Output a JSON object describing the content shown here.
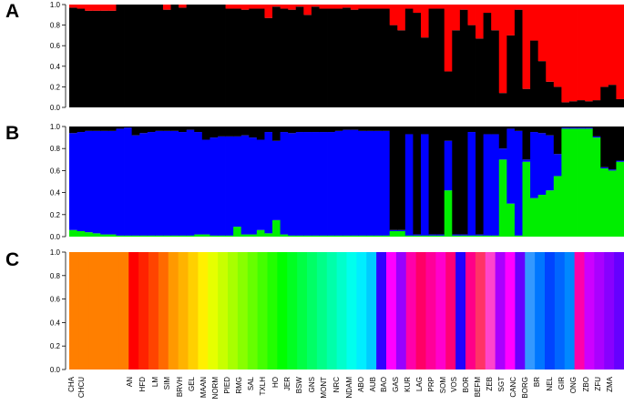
{
  "chart_data": [
    {
      "type": "bar",
      "stacked": true,
      "panel": "A",
      "ylim": [
        0,
        1
      ],
      "yticks": [
        "0.0",
        "0.2",
        "0.4",
        "0.6",
        "0.8",
        "1.0"
      ],
      "components": [
        {
          "color": "#000000",
          "values": [
            0.97,
            0.96,
            0.94,
            0.94,
            0.94,
            0.94,
            1,
            1,
            1,
            1,
            1,
            1,
            0.95,
            1,
            0.97,
            1,
            1,
            1,
            1,
            1,
            0.96,
            0.96,
            0.95,
            0.96,
            0.96,
            0.87,
            0.98,
            0.96,
            0.95,
            0.98,
            0.9,
            0.98,
            0.96,
            0.96,
            0.96,
            0.97,
            0.95,
            0.96,
            0.96,
            0.96,
            0.96,
            0.8,
            0.75,
            0.96,
            0.92,
            0.68,
            0.96,
            0.96,
            0.35,
            0.75,
            0.95,
            0.8,
            0.67,
            0.92,
            0.75,
            0.14,
            0.7,
            0.95,
            0.18,
            0.65,
            0.45,
            0.25,
            0.2,
            0.05,
            0.06,
            0.07,
            0.06,
            0.07,
            0.2,
            0.22,
            0.08
          ]
        },
        {
          "color": "#ff0000",
          "values": [
            0.03,
            0.04,
            0.06,
            0.06,
            0.06,
            0.06,
            0,
            0,
            0,
            0,
            0,
            0,
            0.05,
            0,
            0.03,
            0,
            0,
            0,
            0,
            0,
            0.04,
            0.04,
            0.05,
            0.04,
            0.04,
            0.13,
            0.02,
            0.04,
            0.05,
            0.02,
            0.1,
            0.02,
            0.04,
            0.04,
            0.04,
            0.03,
            0.05,
            0.04,
            0.04,
            0.04,
            0.04,
            0.2,
            0.25,
            0.04,
            0.08,
            0.32,
            0.04,
            0.04,
            0.65,
            0.25,
            0.05,
            0.2,
            0.33,
            0.08,
            0.25,
            0.86,
            0.3,
            0.05,
            0.82,
            0.35,
            0.55,
            0.75,
            0.8,
            0.95,
            0.94,
            0.93,
            0.94,
            0.93,
            0.8,
            0.78,
            0.92
          ]
        }
      ]
    },
    {
      "type": "bar",
      "stacked": true,
      "panel": "B",
      "ylim": [
        0,
        1
      ],
      "yticks": [
        "0.0",
        "0.2",
        "0.4",
        "0.6",
        "0.8",
        "1.0"
      ],
      "components": [
        {
          "color": "#00ee00",
          "values": [
            0.06,
            0.05,
            0.04,
            0.03,
            0.02,
            0.02,
            0.01,
            0.01,
            0.01,
            0.01,
            0.01,
            0.01,
            0.01,
            0.01,
            0.01,
            0.01,
            0.02,
            0.02,
            0.01,
            0.01,
            0.01,
            0.09,
            0.02,
            0.02,
            0.06,
            0.03,
            0.15,
            0.02,
            0.01,
            0.01,
            0.01,
            0.01,
            0.01,
            0.01,
            0.01,
            0.01,
            0.01,
            0.01,
            0.01,
            0.01,
            0.01,
            0.05,
            0.05,
            0.01,
            0.01,
            0.01,
            0.01,
            0.01,
            0.42,
            0.01,
            0.01,
            0.01,
            0.01,
            0.01,
            0.01,
            0.7,
            0.3,
            0.01,
            0.68,
            0.35,
            0.38,
            0.42,
            0.55,
            0.98,
            0.98,
            0.98,
            0.98,
            0.9,
            0.62,
            0.6,
            0.68
          ]
        },
        {
          "color": "#0000ff",
          "values": [
            0.88,
            0.9,
            0.92,
            0.93,
            0.94,
            0.94,
            0.97,
            0.98,
            0.91,
            0.93,
            0.94,
            0.95,
            0.95,
            0.95,
            0.94,
            0.96,
            0.93,
            0.86,
            0.89,
            0.9,
            0.9,
            0.82,
            0.9,
            0.88,
            0.82,
            0.92,
            0.72,
            0.93,
            0.93,
            0.94,
            0.94,
            0.94,
            0.94,
            0.94,
            0.95,
            0.96,
            0.96,
            0.95,
            0.95,
            0.95,
            0.95,
            0.01,
            0.01,
            0.92,
            0.01,
            0.92,
            0.01,
            0.01,
            0.45,
            0.01,
            0.01,
            0.94,
            0.01,
            0.92,
            0.92,
            0.1,
            0.68,
            0.95,
            0.02,
            0.6,
            0.56,
            0.5,
            0.2,
            0.01,
            0.01,
            0.01,
            0.01,
            0.01,
            0.01,
            0.01,
            0.01
          ]
        },
        {
          "color": "#000000",
          "values": [
            0.06,
            0.05,
            0.04,
            0.04,
            0.04,
            0.04,
            0.02,
            0.01,
            0.08,
            0.06,
            0.05,
            0.04,
            0.04,
            0.04,
            0.05,
            0.03,
            0.05,
            0.12,
            0.1,
            0.09,
            0.09,
            0.09,
            0.08,
            0.1,
            0.12,
            0.05,
            0.13,
            0.05,
            0.06,
            0.05,
            0.05,
            0.05,
            0.05,
            0.05,
            0.04,
            0.03,
            0.03,
            0.04,
            0.04,
            0.04,
            0.04,
            0.94,
            0.94,
            0.07,
            0.98,
            0.07,
            0.98,
            0.98,
            0.13,
            0.98,
            0.98,
            0.05,
            0.98,
            0.07,
            0.07,
            0.2,
            0.02,
            0.04,
            0.3,
            0.05,
            0.06,
            0.08,
            0.25,
            0.01,
            0.01,
            0.01,
            0.01,
            0.09,
            0.37,
            0.39,
            0.31
          ]
        }
      ]
    },
    {
      "type": "bar",
      "stacked": true,
      "panel": "C",
      "ylim": [
        0,
        1
      ],
      "yticks": [
        "0.0",
        "0.2",
        "0.4",
        "0.6",
        "0.8",
        "1.0"
      ],
      "colors": [
        "#ff7f00",
        "#ff7f00",
        "#ff7f00",
        "#ff7f00",
        "#ff7f00",
        "#ff7f00",
        "#ff0000",
        "#ff2200",
        "#ff4400",
        "#ff6a00",
        "#ff9900",
        "#ffb300",
        "#ffd000",
        "#fff000",
        "#e6ff00",
        "#c8ff00",
        "#a8ff00",
        "#88ff00",
        "#66ff00",
        "#44ff00",
        "#22ff00",
        "#00ff00",
        "#00ff22",
        "#00ff44",
        "#00ff66",
        "#00ff88",
        "#00ffaa",
        "#00ffcc",
        "#00ffee",
        "#00eeff",
        "#00ccff",
        "#3300ff",
        "#ff00ff",
        "#9900ff",
        "#ff00aa",
        "#ff0066",
        "#ff0099",
        "#ff00cc",
        "#ff0077",
        "#2200ff",
        "#ff0088",
        "#ff3366",
        "#ff44cc",
        "#aa00ff",
        "#ff00ff",
        "#6600ff",
        "#3399ff",
        "#0077ff",
        "#0044ff",
        "#0066ff",
        "#0088ff",
        "#ff00aa",
        "#cc00ff",
        "#aa00ff",
        "#8800ff",
        "#6600ff"
      ]
    }
  ],
  "panels": {
    "a_label": "A",
    "b_label": "B",
    "c_label": "C"
  },
  "populations": [
    "CHA",
    "CHCU",
    "AN",
    "HFD",
    "LM",
    "SIM",
    "BRVH",
    "GEL",
    "MAAN",
    "NORM",
    "PIED",
    "RMG",
    "SAL",
    "TXLH",
    "HO",
    "JER",
    "BSW",
    "GNS",
    "MONT",
    "NRC",
    "NDAM",
    "ABO",
    "AUB",
    "BAO",
    "GAS",
    "KUR",
    "LAG",
    "PRP",
    "SOM",
    "VOS",
    "BOR",
    "BEFM",
    "ZEB",
    "SGT",
    "CANC",
    "BORG",
    "BR",
    "NEL",
    "GIR",
    "ONG",
    "ZBO",
    "ZFU",
    "ZMA"
  ]
}
